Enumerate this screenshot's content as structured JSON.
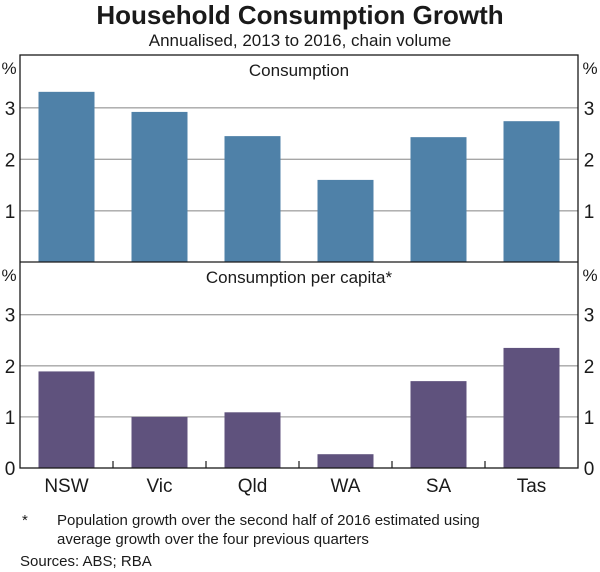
{
  "chart_data": {
    "type": "bar",
    "title": "Household Consumption Growth",
    "subtitle": "Annualised, 2013 to 2016, chain volume",
    "categories": [
      "NSW",
      "Vic",
      "Qld",
      "WA",
      "SA",
      "Tas"
    ],
    "panels": [
      {
        "title": "Consumption",
        "unit": "%",
        "ylim": [
          0,
          3.6
        ],
        "yticks": [
          1,
          2,
          3
        ],
        "show_zero_label": false,
        "color": "#4f81a8",
        "values": [
          3.31,
          2.92,
          2.45,
          1.6,
          2.43,
          2.74
        ]
      },
      {
        "title": "Consumption per capita*",
        "unit": "%",
        "ylim": [
          0,
          3.6
        ],
        "yticks": [
          0,
          1,
          2,
          3
        ],
        "show_zero_label": true,
        "color": "#5f527d",
        "values": [
          1.89,
          1.0,
          1.09,
          0.27,
          1.7,
          2.35
        ]
      }
    ],
    "grid": true,
    "xlabel": "",
    "ylabel": "%"
  },
  "footnote": {
    "marker": "*",
    "text_line1": "Population growth over the second half of 2016 estimated using",
    "text_line2": "average growth over the four previous quarters"
  },
  "sources": "Sources: ABS; RBA"
}
